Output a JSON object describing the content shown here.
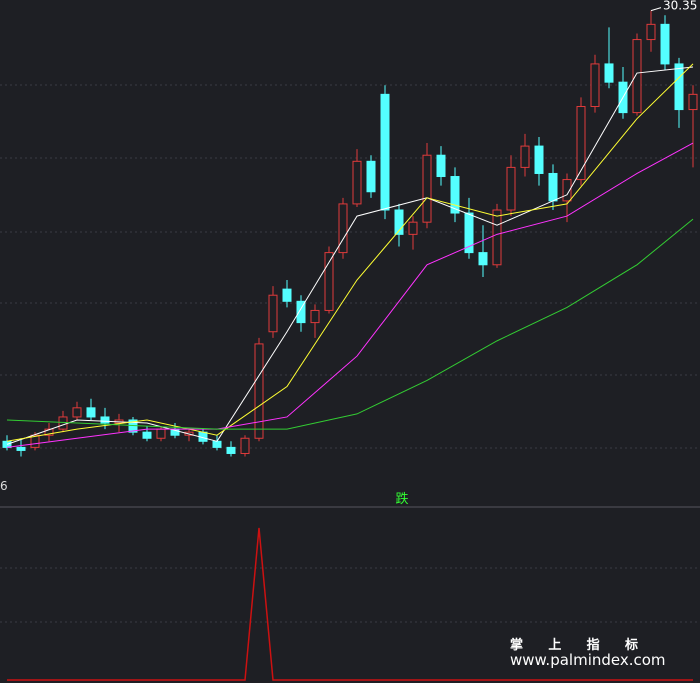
{
  "chart_data": {
    "type": "candlestick",
    "candles": [
      [
        16.2,
        16.4,
        15.9,
        16.0
      ],
      [
        16.0,
        16.3,
        15.7,
        15.9
      ],
      [
        16.0,
        16.5,
        15.9,
        16.4
      ],
      [
        16.4,
        16.8,
        16.2,
        16.6
      ],
      [
        16.6,
        17.2,
        16.5,
        17.0
      ],
      [
        17.0,
        17.5,
        16.9,
        17.3
      ],
      [
        17.3,
        17.6,
        16.9,
        17.0
      ],
      [
        17.0,
        17.3,
        16.6,
        16.8
      ],
      [
        16.8,
        17.1,
        16.5,
        16.9
      ],
      [
        16.9,
        17.0,
        16.4,
        16.5
      ],
      [
        16.5,
        16.7,
        16.2,
        16.3
      ],
      [
        16.3,
        16.7,
        16.2,
        16.6
      ],
      [
        16.6,
        16.8,
        16.3,
        16.4
      ],
      [
        16.4,
        16.6,
        16.2,
        16.5
      ],
      [
        16.5,
        16.6,
        16.1,
        16.2
      ],
      [
        16.2,
        16.4,
        15.9,
        16.0
      ],
      [
        16.0,
        16.2,
        15.7,
        15.8
      ],
      [
        15.8,
        16.4,
        15.7,
        16.3
      ],
      [
        16.3,
        19.6,
        16.2,
        19.4
      ],
      [
        19.8,
        21.3,
        19.6,
        21.0
      ],
      [
        21.2,
        21.5,
        20.6,
        20.8
      ],
      [
        20.8,
        21.0,
        19.8,
        20.1
      ],
      [
        20.1,
        20.7,
        19.6,
        20.5
      ],
      [
        20.5,
        22.6,
        20.4,
        22.4
      ],
      [
        22.4,
        24.2,
        22.2,
        24.0
      ],
      [
        24.0,
        25.8,
        23.9,
        25.4
      ],
      [
        25.4,
        25.6,
        24.2,
        24.4
      ],
      [
        27.6,
        27.9,
        23.5,
        23.8
      ],
      [
        23.8,
        24.0,
        22.6,
        23.0
      ],
      [
        23.0,
        23.6,
        22.5,
        23.4
      ],
      [
        23.4,
        26.0,
        23.2,
        25.6
      ],
      [
        25.6,
        25.9,
        24.6,
        24.9
      ],
      [
        24.9,
        25.2,
        23.4,
        23.7
      ],
      [
        23.7,
        24.2,
        22.2,
        22.4
      ],
      [
        22.4,
        23.3,
        21.6,
        22.0
      ],
      [
        22.0,
        24.0,
        21.9,
        23.8
      ],
      [
        23.8,
        25.6,
        23.6,
        25.2
      ],
      [
        25.2,
        26.3,
        24.9,
        25.9
      ],
      [
        25.9,
        26.2,
        24.6,
        25.0
      ],
      [
        25.0,
        25.3,
        23.8,
        24.1
      ],
      [
        24.1,
        25.0,
        23.4,
        24.8
      ],
      [
        24.8,
        27.5,
        24.6,
        27.2
      ],
      [
        27.2,
        28.9,
        27.0,
        28.6
      ],
      [
        28.6,
        29.8,
        27.8,
        28.0
      ],
      [
        28.0,
        28.5,
        26.8,
        27.0
      ],
      [
        27.0,
        29.6,
        26.9,
        29.4
      ],
      [
        29.4,
        30.35,
        29.0,
        29.9
      ],
      [
        29.9,
        30.2,
        28.4,
        28.6
      ],
      [
        28.6,
        28.8,
        26.5,
        27.1
      ],
      [
        27.1,
        27.9,
        25.2,
        27.6
      ]
    ],
    "up_color": "#e03b3b",
    "down_color": "#54ffff",
    "ylim": [
      14.6,
      30.7
    ],
    "low_label": "6",
    "moving_averages": [
      {
        "color": "#ffffff",
        "x": [
          0,
          5,
          10,
          15,
          20,
          25,
          30,
          35,
          40,
          45,
          49
        ],
        "values": [
          16.1,
          16.9,
          16.8,
          16.2,
          19.8,
          23.6,
          24.2,
          23.3,
          24.3,
          28.3,
          28.5
        ]
      },
      {
        "color": "#ffff33",
        "x": [
          0,
          5,
          10,
          15,
          20,
          25,
          30,
          35,
          40,
          45,
          49
        ],
        "values": [
          16.2,
          16.6,
          16.9,
          16.4,
          18.0,
          21.5,
          24.2,
          23.6,
          24.0,
          26.8,
          28.6
        ]
      },
      {
        "color": "#ff33ff",
        "x": [
          0,
          5,
          10,
          15,
          20,
          25,
          30,
          35,
          40,
          45,
          49
        ],
        "values": [
          16.0,
          16.3,
          16.6,
          16.6,
          17.0,
          19.0,
          22.0,
          23.0,
          23.6,
          25.0,
          26.0
        ]
      },
      {
        "color": "#33cc33",
        "x": [
          0,
          5,
          10,
          15,
          20,
          25,
          30,
          35,
          40,
          45,
          49
        ],
        "values": [
          16.9,
          16.8,
          16.7,
          16.6,
          16.6,
          17.1,
          18.2,
          19.5,
          20.6,
          22.0,
          23.5
        ]
      }
    ],
    "indicator": {
      "type": "line",
      "label": "跌",
      "label_color": "#33ff33",
      "color": "#cc1111",
      "ylim": [
        0,
        1
      ],
      "values": [
        0,
        0,
        0,
        0,
        0,
        0,
        0,
        0,
        0,
        0,
        0,
        0,
        0,
        0,
        0,
        0,
        0,
        0,
        1,
        0,
        0,
        0,
        0,
        0,
        0,
        0,
        0,
        0,
        0,
        0,
        0,
        0,
        0,
        0,
        0,
        0,
        0,
        0,
        0,
        0,
        0,
        0,
        0,
        0,
        0,
        0,
        0,
        0,
        0,
        0
      ]
    }
  },
  "watermark": {
    "title": "掌 上 指 标",
    "url": "www.palmindex.com"
  }
}
